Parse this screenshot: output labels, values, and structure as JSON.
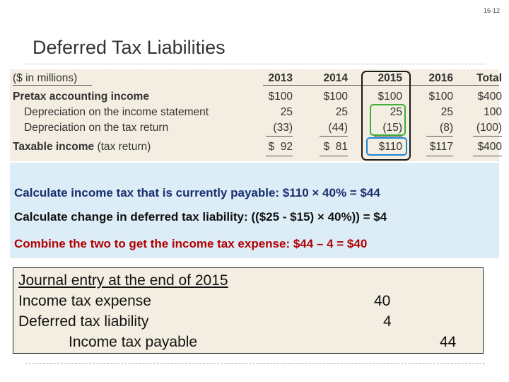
{
  "slide_number": "16-12",
  "title": "Deferred Tax Liabilities",
  "table": {
    "header_label": "($ in millions)",
    "columns": [
      "2013",
      "2014",
      "2015",
      "2016",
      "Total"
    ],
    "rows": [
      {
        "label": "Pretax accounting income",
        "values": [
          "$100",
          "$100",
          "$100",
          "$100",
          "$400"
        ]
      },
      {
        "label": "Depreciation on the income statement",
        "values": [
          "25",
          "25",
          "25",
          "25",
          "100"
        ]
      },
      {
        "label": "Depreciation on the tax return",
        "values": [
          "(33)",
          "(44)",
          "(15)",
          "(8)",
          "(100)"
        ]
      },
      {
        "label": "Taxable income",
        "label_suffix": " (tax return)",
        "values": [
          "$  92",
          "$  81",
          "$110",
          "$117",
          "$400"
        ]
      }
    ]
  },
  "calculations": {
    "line1": "Calculate income tax that is currently payable:  $110 × 40% = $44",
    "line2": "Calculate change in deferred tax liability: (($25 - $15) × 40%)) = $4",
    "line3": "Combine the two to get the income tax expense: $44 – 4  = $40"
  },
  "journal": {
    "title": "Journal entry at the end of 2015",
    "line1_account": "Income tax expense",
    "line1_debit": "40",
    "line2_account": "Deferred tax liability",
    "line2_debit": "4",
    "line3_account": "Income tax payable",
    "line3_credit": "44"
  },
  "colors": {
    "table_bg": "#f3eee1",
    "calc_bg": "#dcedf7",
    "highlight_column": "#1a1a1a",
    "highlight_depreciation": "#3fae3a",
    "highlight_taxable": "#1f86d1",
    "combine_text": "#b30000"
  }
}
